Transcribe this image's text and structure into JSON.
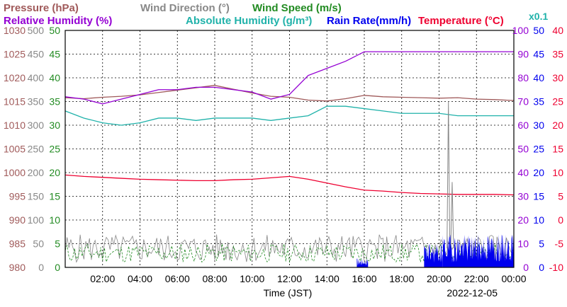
{
  "chart_data": {
    "type": "line",
    "date": "2022-12-05",
    "xlabel": "Time (JST)",
    "x_ticks": [
      "02:00",
      "04:00",
      "06:00",
      "08:00",
      "10:00",
      "12:00",
      "14:00",
      "16:00",
      "18:00",
      "20:00",
      "22:00",
      "00:00"
    ],
    "xlim_hours": [
      0,
      24
    ],
    "grid": true,
    "colors": {
      "pressure": "#a05a5a",
      "wind_direction": "#888888",
      "wind_speed": "#228b22",
      "humidity": "#9400d3",
      "abs_humidity": "#20b2aa",
      "rain": "#0000ee",
      "temperature": "#ee0030"
    },
    "legend": {
      "row1": [
        {
          "key": "pressure",
          "label": "Pressure (hPa)"
        },
        {
          "key": "wind_direction",
          "label": "Wind Direction (°)"
        },
        {
          "key": "wind_speed",
          "label": "Wind Speed (m/s)"
        }
      ],
      "row2": [
        {
          "key": "humidity",
          "label": "Relative Humidity (%)"
        },
        {
          "key": "abs_humidity",
          "label": "Absolute Humidity (g/m³)"
        },
        {
          "key": "rain",
          "label": "Rain Rate(mm/h)"
        },
        {
          "key": "temperature",
          "label": "Temperature (°C)"
        }
      ],
      "scale_note": "x0.1"
    },
    "axes": {
      "pressure": {
        "ylim": [
          980,
          1030
        ],
        "ticks": [
          "1030",
          "1025",
          "1020",
          "1015",
          "1010",
          "1005",
          "1000",
          "995",
          "990",
          "985",
          "980"
        ]
      },
      "wind_direction": {
        "ylim": [
          0,
          500
        ],
        "ticks": [
          "500",
          "450",
          "400",
          "350",
          "300",
          "250",
          "200",
          "150",
          "100",
          "50",
          "0"
        ]
      },
      "wind_speed": {
        "ylim": [
          0,
          50
        ],
        "ticks": [
          "50",
          "45",
          "40",
          "35",
          "30",
          "25",
          "20",
          "15",
          "10",
          "5",
          "0"
        ]
      },
      "humidity": {
        "ylim": [
          0,
          100
        ],
        "ticks": [
          "100",
          "90",
          "80",
          "70",
          "60",
          "50",
          "40",
          "30",
          "20",
          "10",
          "0"
        ]
      },
      "rain": {
        "ylim": [
          0,
          50
        ],
        "ticks": [
          "50",
          "45",
          "40",
          "35",
          "30",
          "25",
          "20",
          "15",
          "10",
          "5",
          "0"
        ]
      },
      "temperature": {
        "ylim": [
          -10,
          40
        ],
        "ticks": [
          "40",
          "35",
          "30",
          "25",
          "20",
          "15",
          "10",
          "5",
          "0",
          "-5",
          "-10"
        ]
      }
    },
    "series": [
      {
        "name": "Pressure (hPa)",
        "key": "pressure",
        "x": [
          0,
          1,
          2,
          3,
          4,
          5,
          6,
          7,
          8,
          9,
          10,
          11,
          12,
          13,
          14,
          15,
          16,
          17,
          18,
          19,
          20,
          21,
          22,
          23,
          24
        ],
        "values": [
          1015.8,
          1015.6,
          1015.9,
          1016.1,
          1016.4,
          1016.9,
          1017.4,
          1017.9,
          1018.4,
          1017.6,
          1016.8,
          1016.1,
          1015.9,
          1015.3,
          1015.1,
          1015.6,
          1016.3,
          1016.0,
          1015.9,
          1015.8,
          1015.7,
          1015.8,
          1015.5,
          1015.4,
          1015.2
        ]
      },
      {
        "name": "Absolute Humidity (g/m³)",
        "key": "abs_humidity",
        "note": "values ×0.1 on humidity axis",
        "x": [
          0,
          1,
          2,
          3,
          4,
          5,
          6,
          7,
          8,
          9,
          10,
          11,
          12,
          13,
          14,
          15,
          16,
          17,
          18,
          19,
          20,
          21,
          22,
          23,
          24
        ],
        "values": [
          66,
          63,
          61,
          60,
          61,
          63,
          63,
          62,
          63,
          63,
          63,
          62,
          63,
          64,
          68,
          68,
          67,
          66,
          65,
          65,
          65,
          64,
          64,
          64,
          64
        ]
      },
      {
        "name": "Relative Humidity (%)",
        "key": "humidity",
        "x": [
          0,
          1,
          2,
          3,
          4,
          5,
          6,
          7,
          8,
          9,
          10,
          11,
          12,
          13,
          14,
          15,
          16,
          17,
          18,
          19,
          20,
          21,
          22,
          23,
          24
        ],
        "values": [
          72,
          71,
          69,
          71,
          73,
          75,
          75,
          76,
          76,
          75,
          74,
          71,
          73,
          81,
          84,
          87,
          91,
          91,
          91,
          91,
          91,
          91,
          91,
          91,
          91
        ]
      },
      {
        "name": "Temperature (°C)",
        "key": "temperature",
        "x": [
          0,
          1,
          2,
          3,
          4,
          5,
          6,
          7,
          8,
          9,
          10,
          11,
          12,
          13,
          14,
          15,
          16,
          17,
          18,
          19,
          20,
          21,
          22,
          23,
          24
        ],
        "values": [
          9.5,
          9.2,
          9.0,
          8.8,
          8.6,
          8.5,
          8.4,
          8.3,
          8.3,
          8.5,
          8.6,
          8.9,
          9.2,
          8.6,
          7.8,
          7.0,
          6.3,
          6.1,
          5.8,
          5.6,
          5.5,
          5.4,
          5.4,
          5.4,
          5.3
        ]
      },
      {
        "name": "Wind Direction (°)",
        "key": "wind_direction",
        "style": "noisy",
        "spikes": [
          {
            "x": 20.5,
            "value": 350
          },
          {
            "x": 20.7,
            "value": 180
          }
        ]
      },
      {
        "name": "Wind Speed (m/s)",
        "key": "wind_speed",
        "style": "noisy"
      },
      {
        "name": "Rain Rate(mm/h)",
        "key": "rain",
        "style": "filled",
        "segments": [
          [
            15.6,
            16.2,
            2
          ],
          [
            19.2,
            20.2,
            5
          ],
          [
            20.2,
            24,
            7
          ]
        ]
      }
    ]
  }
}
